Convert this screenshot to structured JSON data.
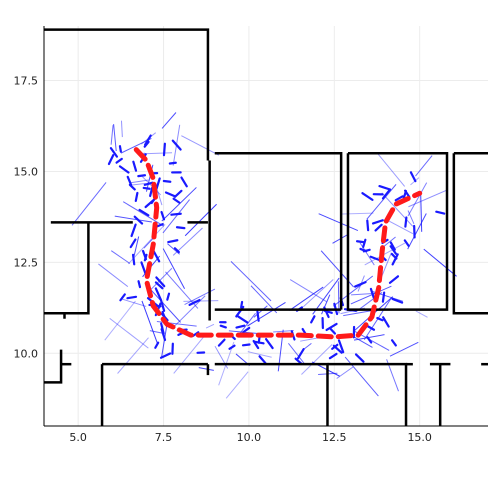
{
  "chart_data": {
    "type": "line",
    "title": "",
    "xlabel": "",
    "ylabel": "",
    "xlim": [
      4.0,
      17.0
    ],
    "ylim": [
      8.0,
      19.0
    ],
    "x_ticks": [
      5.0,
      7.5,
      10.0,
      12.5,
      15.0
    ],
    "x_tick_labels": [
      "5.0",
      "7.5",
      "10.0",
      "12.5",
      "15.0"
    ],
    "y_ticks": [
      10.0,
      12.5,
      15.0,
      17.5
    ],
    "y_tick_labels": [
      "10.0",
      "12.5",
      "15.0",
      "17.5"
    ],
    "grid": true,
    "legend": "none",
    "colors": {
      "walls": "#000000",
      "samples": "#1a1aff",
      "reference_path": "#ff1a1a",
      "grid": "#ececec"
    },
    "walls": [
      [
        [
          4.0,
          18.9
        ],
        [
          8.8,
          18.9
        ],
        [
          8.8,
          15.3
        ]
      ],
      [
        [
          8.85,
          15.3
        ],
        [
          8.85,
          10.9
        ]
      ],
      [
        [
          9.0,
          15.5
        ],
        [
          12.7,
          15.5
        ],
        [
          12.7,
          11.2
        ]
      ],
      [
        [
          9.0,
          11.2
        ],
        [
          12.7,
          11.2
        ]
      ],
      [
        [
          12.9,
          15.5
        ],
        [
          15.8,
          15.5
        ],
        [
          15.8,
          11.2
        ],
        [
          12.9,
          11.2
        ],
        [
          12.9,
          15.5
        ]
      ],
      [
        [
          16.0,
          15.5
        ],
        [
          17.0,
          15.5
        ]
      ],
      [
        [
          16.0,
          15.5
        ],
        [
          16.0,
          11.1
        ],
        [
          17.0,
          11.1
        ]
      ],
      [
        [
          4.2,
          13.6
        ],
        [
          6.6,
          13.6
        ]
      ],
      [
        [
          5.3,
          13.6
        ],
        [
          5.3,
          11.1
        ],
        [
          4.0,
          11.1
        ]
      ],
      [
        [
          4.6,
          11.1
        ],
        [
          4.6,
          10.95
        ]
      ],
      [
        [
          4.0,
          9.2
        ],
        [
          4.5,
          9.2
        ],
        [
          4.5,
          10.1
        ]
      ],
      [
        [
          4.5,
          9.7
        ],
        [
          4.8,
          9.7
        ]
      ],
      [
        [
          5.7,
          9.7
        ],
        [
          5.7,
          8.0
        ]
      ],
      [
        [
          5.7,
          9.7
        ],
        [
          8.8,
          9.7
        ]
      ],
      [
        [
          8.8,
          9.7
        ],
        [
          8.8,
          9.4
        ]
      ],
      [
        [
          9.0,
          9.7
        ],
        [
          12.3,
          9.7
        ],
        [
          12.3,
          8.0
        ]
      ],
      [
        [
          12.3,
          9.7
        ],
        [
          14.6,
          9.7
        ],
        [
          14.6,
          8.0
        ]
      ],
      [
        [
          14.6,
          9.7
        ],
        [
          14.8,
          9.7
        ]
      ],
      [
        [
          15.3,
          9.7
        ],
        [
          15.9,
          9.7
        ]
      ],
      [
        [
          15.6,
          9.7
        ],
        [
          15.6,
          8.0
        ]
      ],
      [
        [
          16.8,
          9.7
        ],
        [
          17.0,
          9.7
        ]
      ],
      [
        [
          8.2,
          13.6
        ],
        [
          8.8,
          13.6
        ]
      ]
    ],
    "series": [
      {
        "style": "dashed",
        "points": [
          [
            6.7,
            15.6
          ],
          [
            7.0,
            15.3
          ],
          [
            7.2,
            14.8
          ],
          [
            7.3,
            14.0
          ],
          [
            7.2,
            13.0
          ],
          [
            7.0,
            12.0
          ],
          [
            7.2,
            11.3
          ],
          [
            7.6,
            10.8
          ],
          [
            8.3,
            10.5
          ],
          [
            9.5,
            10.5
          ],
          [
            10.5,
            10.5
          ],
          [
            11.5,
            10.5
          ],
          [
            12.5,
            10.45
          ],
          [
            13.2,
            10.5
          ],
          [
            13.6,
            11.0
          ],
          [
            13.8,
            11.8
          ],
          [
            13.9,
            12.8
          ],
          [
            14.0,
            13.6
          ],
          [
            14.3,
            14.1
          ],
          [
            15.0,
            14.4
          ]
        ]
      }
    ]
  }
}
